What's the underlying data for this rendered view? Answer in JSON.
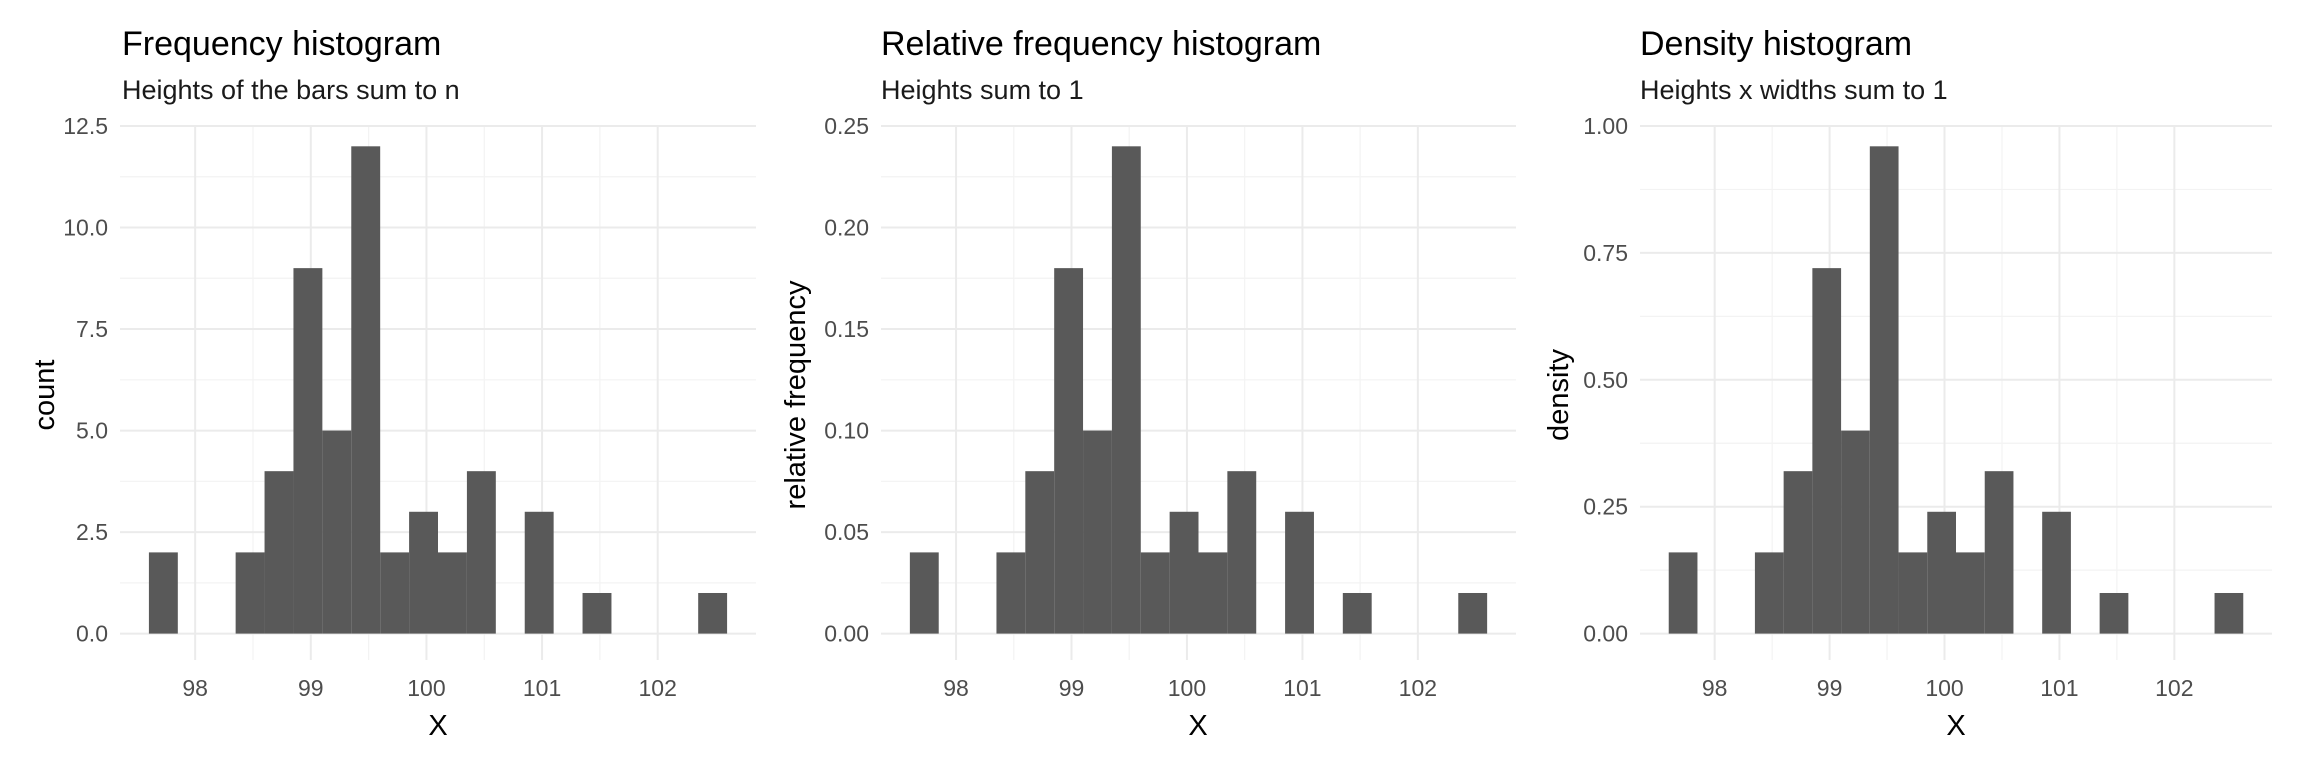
{
  "chart_data": [
    {
      "type": "bar",
      "title": "Frequency histogram",
      "subtitle": "Heights of the bars sum to n",
      "xlabel": "X",
      "ylabel": "count",
      "bin_width": 0.25,
      "bin_starts": [
        97.6,
        97.85,
        98.1,
        98.35,
        98.6,
        98.85,
        99.1,
        99.35,
        99.6,
        99.85,
        100.1,
        100.35,
        100.6,
        100.85,
        101.1,
        101.35,
        101.6,
        101.85,
        102.1,
        102.35
      ],
      "values": [
        2,
        0,
        0,
        2,
        4,
        9,
        5,
        12,
        2,
        3,
        2,
        4,
        0,
        3,
        0,
        1,
        0,
        0,
        0,
        1
      ],
      "xlim": [
        97.35,
        102.85
      ],
      "ylim": [
        -0.65,
        12.5
      ],
      "x_ticks": [
        98,
        99,
        100,
        101,
        102
      ],
      "x_tick_labels": [
        "98",
        "99",
        "100",
        "101",
        "102"
      ],
      "y_ticks": [
        0,
        2.5,
        5,
        7.5,
        10,
        12.5
      ],
      "y_tick_labels": [
        "0.0",
        "2.5",
        "5.0",
        "7.5",
        "10.0",
        "12.5"
      ],
      "grid": true
    },
    {
      "type": "bar",
      "title": "Relative frequency histogram",
      "subtitle": "Heights sum to 1",
      "xlabel": "X",
      "ylabel": "relative frequency",
      "bin_width": 0.25,
      "bin_starts": [
        97.6,
        97.85,
        98.1,
        98.35,
        98.6,
        98.85,
        99.1,
        99.35,
        99.6,
        99.85,
        100.1,
        100.35,
        100.6,
        100.85,
        101.1,
        101.35,
        101.6,
        101.85,
        102.1,
        102.35
      ],
      "values": [
        0.04,
        0,
        0,
        0.04,
        0.08,
        0.18,
        0.1,
        0.24,
        0.04,
        0.06,
        0.04,
        0.08,
        0,
        0.06,
        0,
        0.02,
        0,
        0,
        0,
        0.02
      ],
      "xlim": [
        97.35,
        102.85
      ],
      "ylim": [
        -0.013,
        0.25
      ],
      "x_ticks": [
        98,
        99,
        100,
        101,
        102
      ],
      "x_tick_labels": [
        "98",
        "99",
        "100",
        "101",
        "102"
      ],
      "y_ticks": [
        0,
        0.05,
        0.1,
        0.15,
        0.2,
        0.25
      ],
      "y_tick_labels": [
        "0.00",
        "0.05",
        "0.10",
        "0.15",
        "0.20",
        "0.25"
      ],
      "grid": true
    },
    {
      "type": "bar",
      "title": "Density histogram",
      "subtitle": "Heights x widths sum to 1",
      "xlabel": "X",
      "ylabel": "density",
      "bin_width": 0.25,
      "bin_starts": [
        97.6,
        97.85,
        98.1,
        98.35,
        98.6,
        98.85,
        99.1,
        99.35,
        99.6,
        99.85,
        100.1,
        100.35,
        100.6,
        100.85,
        101.1,
        101.35,
        101.6,
        101.85,
        102.1,
        102.35
      ],
      "values": [
        0.16,
        0,
        0,
        0.16,
        0.32,
        0.72,
        0.4,
        0.96,
        0.16,
        0.24,
        0.16,
        0.32,
        0,
        0.24,
        0,
        0.08,
        0,
        0,
        0,
        0.08
      ],
      "xlim": [
        97.35,
        102.85
      ],
      "ylim": [
        -0.052,
        1.0
      ],
      "x_ticks": [
        98,
        99,
        100,
        101,
        102
      ],
      "x_tick_labels": [
        "98",
        "99",
        "100",
        "101",
        "102"
      ],
      "y_ticks": [
        0,
        0.25,
        0.5,
        0.75,
        1.0
      ],
      "y_tick_labels": [
        "0.00",
        "0.25",
        "0.50",
        "0.75",
        "1.00"
      ],
      "grid": true
    }
  ]
}
